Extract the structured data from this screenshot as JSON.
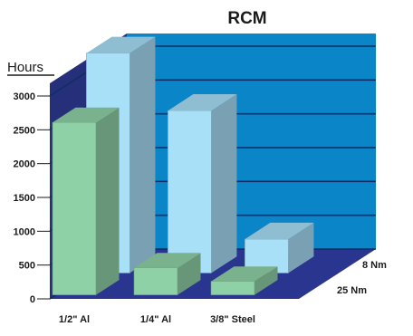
{
  "chart_data": {
    "type": "bar",
    "title": "RCM",
    "ylabel": "Hours",
    "xlabel": "",
    "ylim": [
      0,
      3000
    ],
    "yticks": [
      0,
      500,
      1000,
      1500,
      2000,
      2500,
      3000
    ],
    "grid": true,
    "three_d": true,
    "categories": [
      "1/2\" Al",
      "1/4\" Al",
      "3/8\" Steel"
    ],
    "series": [
      {
        "name": "8 Nm",
        "values": [
          2550,
          400,
          200
        ],
        "color": "#8fd1a6"
      },
      {
        "name": "25 Nm",
        "values": [
          3250,
          2400,
          500
        ],
        "color": "#a8e0f8"
      }
    ],
    "colors": {
      "back_wall": "#0a86c8",
      "side_wall": "#262f7a",
      "floor": "#2a3590",
      "gridline": "#0d2f66"
    }
  }
}
